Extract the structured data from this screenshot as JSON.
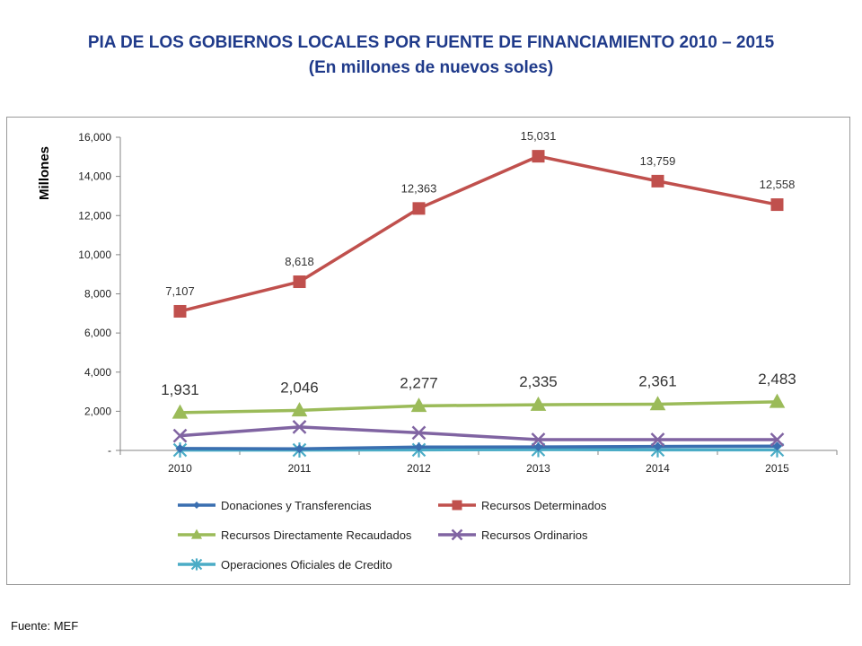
{
  "title": {
    "line1": "PIA DE LOS GOBIERNOS LOCALES POR FUENTE DE FINANCIAMIENTO 2010 – 2015",
    "line2": "(En millones de nuevos soles)"
  },
  "source": "Fuente: MEF",
  "chart_data": {
    "type": "line",
    "title": "PIA DE LOS GOBIERNOS LOCALES POR FUENTE DE FINANCIAMIENTO 2010 – 2015",
    "subtitle": "(En millones de nuevos soles)",
    "xlabel": "",
    "ylabel": "Millones",
    "categories": [
      "2010",
      "2011",
      "2012",
      "2013",
      "2014",
      "2015"
    ],
    "ylim": [
      0,
      16000
    ],
    "yticks": [
      0,
      2000,
      4000,
      6000,
      8000,
      10000,
      12000,
      14000,
      16000
    ],
    "ytick_labels": [
      "-",
      "2,000",
      "4,000",
      "6,000",
      "8,000",
      "10,000",
      "12,000",
      "14,000",
      "16,000"
    ],
    "grid": false,
    "legend_position": "bottom",
    "series": [
      {
        "name": "Donaciones y Transferencias",
        "color": "#3a6fb0",
        "marker": "diamond",
        "values": [
          100,
          80,
          170,
          180,
          200,
          220
        ],
        "labels": null
      },
      {
        "name": "Recursos Determinados",
        "color": "#c0504d",
        "marker": "square",
        "values": [
          7107,
          8618,
          12363,
          15031,
          13759,
          12558
        ],
        "labels": [
          "7,107",
          "8,618",
          "12,363",
          "15,031",
          "13,759",
          "12,558"
        ]
      },
      {
        "name": "Recursos Directamente Recaudados",
        "color": "#9bbb59",
        "marker": "triangle",
        "values": [
          1931,
          2046,
          2277,
          2335,
          2361,
          2483
        ],
        "labels": [
          "1,931",
          "2,046",
          "2,277",
          "2,335",
          "2,361",
          "2,483"
        ]
      },
      {
        "name": "Recursos Ordinarios",
        "color": "#8064a2",
        "marker": "x",
        "values": [
          750,
          1200,
          900,
          550,
          550,
          550
        ],
        "labels": null
      },
      {
        "name": "Operaciones Oficiales de Credito",
        "color": "#4bacc6",
        "marker": "star",
        "values": [
          20,
          20,
          30,
          40,
          30,
          30
        ],
        "labels": null
      }
    ]
  }
}
